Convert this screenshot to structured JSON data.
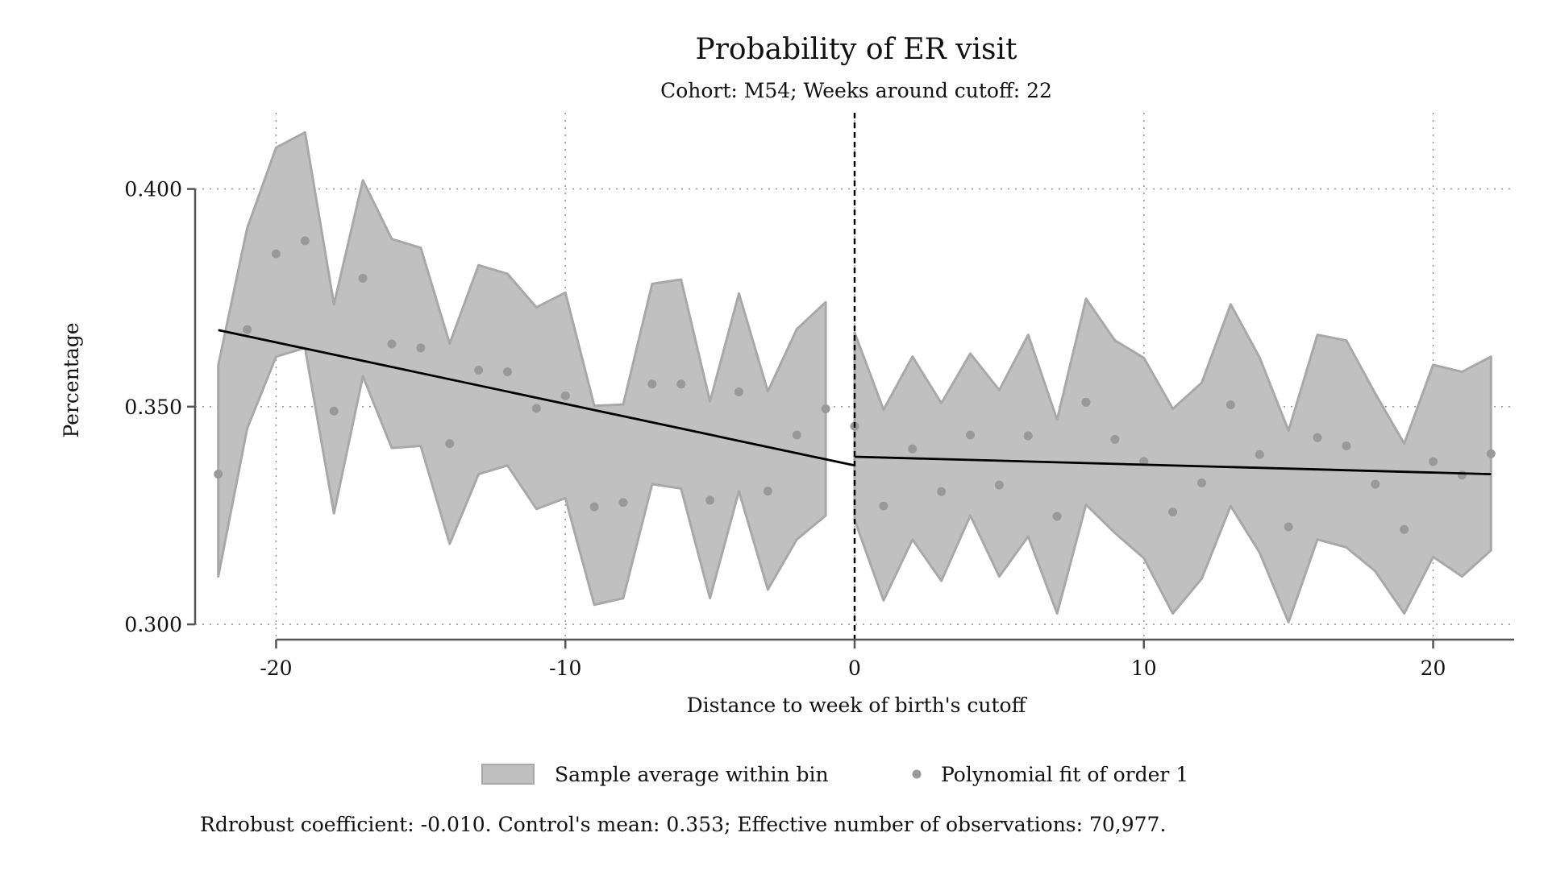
{
  "chart_data": {
    "type": "scatter",
    "title": "Probability of ER visit",
    "subtitle": "Cohort: M54; Weeks around cutoff: 22",
    "xlabel": "Distance to week of birth's cutoff",
    "ylabel": "Percentage",
    "xlim": [
      -22.8,
      22.8
    ],
    "ylim": [
      0.2965,
      0.4175
    ],
    "x_ticks": [
      -20,
      -10,
      0,
      10,
      20
    ],
    "x_tick_labels": [
      "-20",
      "-10",
      "0",
      "10",
      "20"
    ],
    "y_ticks": [
      0.3,
      0.35,
      0.4
    ],
    "y_tick_labels": [
      "0.300",
      "0.350",
      "0.400"
    ],
    "grid": true,
    "cutoff_x": 0,
    "bins": {
      "name": "Polynomial fit of order 1",
      "x": [
        -22,
        -21,
        -20,
        -19,
        -18,
        -17,
        -16,
        -15,
        -14,
        -13,
        -12,
        -11,
        -10,
        -9,
        -8,
        -7,
        -6,
        -5,
        -4,
        -3,
        -2,
        -1,
        0,
        1,
        2,
        3,
        4,
        5,
        6,
        7,
        8,
        9,
        10,
        11,
        12,
        13,
        14,
        15,
        16,
        17,
        18,
        19,
        20,
        21,
        22
      ],
      "y": [
        0.3345,
        0.3677,
        0.3851,
        0.3881,
        0.349,
        0.3795,
        0.3644,
        0.3635,
        0.3415,
        0.3584,
        0.358,
        0.3496,
        0.3525,
        0.327,
        0.328,
        0.3552,
        0.3552,
        0.3285,
        0.3534,
        0.3306,
        0.3435,
        0.3495,
        0.3455,
        0.3272,
        0.3403,
        0.3305,
        0.3435,
        0.332,
        0.3433,
        0.3248,
        0.351,
        0.3425,
        0.3374,
        0.3258,
        0.3325,
        0.3504,
        0.339,
        0.3224,
        0.3429,
        0.341,
        0.3322,
        0.3218,
        0.3374,
        0.3343,
        0.3392
      ]
    },
    "ci_band": {
      "name": "Sample average within bin",
      "segments": [
        {
          "x": [
            -22,
            -21,
            -20,
            -19,
            -18,
            -17,
            -16,
            -15,
            -14,
            -13,
            -12,
            -11,
            -10,
            -9,
            -8,
            -7,
            -6,
            -5,
            -4,
            -3,
            -2,
            -1
          ],
          "lower": [
            0.311,
            0.345,
            0.3615,
            0.3635,
            0.3255,
            0.357,
            0.3405,
            0.341,
            0.3185,
            0.3345,
            0.3365,
            0.3265,
            0.329,
            0.3045,
            0.306,
            0.3322,
            0.3312,
            0.306,
            0.3306,
            0.308,
            0.3195,
            0.325
          ],
          "upper": [
            0.3595,
            0.391,
            0.4095,
            0.413,
            0.3735,
            0.402,
            0.3885,
            0.3865,
            0.3645,
            0.3825,
            0.3805,
            0.3728,
            0.3762,
            0.3502,
            0.3505,
            0.3782,
            0.3792,
            0.3512,
            0.376,
            0.3535,
            0.3678,
            0.374
          ]
        },
        {
          "x": [
            0,
            1,
            2,
            3,
            4,
            5,
            6,
            7,
            8,
            9,
            10,
            11,
            12,
            13,
            14,
            15,
            16,
            17,
            18,
            19,
            20,
            21,
            22
          ],
          "lower": [
            0.324,
            0.3055,
            0.3195,
            0.31,
            0.325,
            0.311,
            0.3202,
            0.3025,
            0.3275,
            0.321,
            0.3152,
            0.3025,
            0.3105,
            0.3272,
            0.3165,
            0.3005,
            0.3195,
            0.3177,
            0.3122,
            0.3025,
            0.3155,
            0.311,
            0.317
          ],
          "upper": [
            0.367,
            0.3493,
            0.3615,
            0.3508,
            0.3622,
            0.3538,
            0.3665,
            0.347,
            0.3748,
            0.3652,
            0.3612,
            0.3495,
            0.3555,
            0.3735,
            0.3613,
            0.3445,
            0.3665,
            0.3652,
            0.353,
            0.3415,
            0.3596,
            0.358,
            0.3615
          ]
        }
      ]
    },
    "fit_lines": [
      {
        "x": [
          -22,
          0
        ],
        "y": [
          0.3676,
          0.3365
        ]
      },
      {
        "x": [
          0,
          22
        ],
        "y": [
          0.3385,
          0.3345
        ]
      }
    ],
    "legend": {
      "position": "bottom",
      "entries": [
        "Sample average within bin",
        "Polynomial fit of order 1"
      ]
    },
    "note": "Rdrobust coefficient: -0.010. Control's mean: 0.353; Effective number of observations: 70,977.",
    "colors": {
      "band_fill": "#c0c0c0",
      "band_stroke": "#a8a8a8",
      "points": "#999999",
      "fit_line": "#000000",
      "axis": "#555555",
      "grid": "#9a9a9a",
      "cutoff": "#000000"
    }
  }
}
